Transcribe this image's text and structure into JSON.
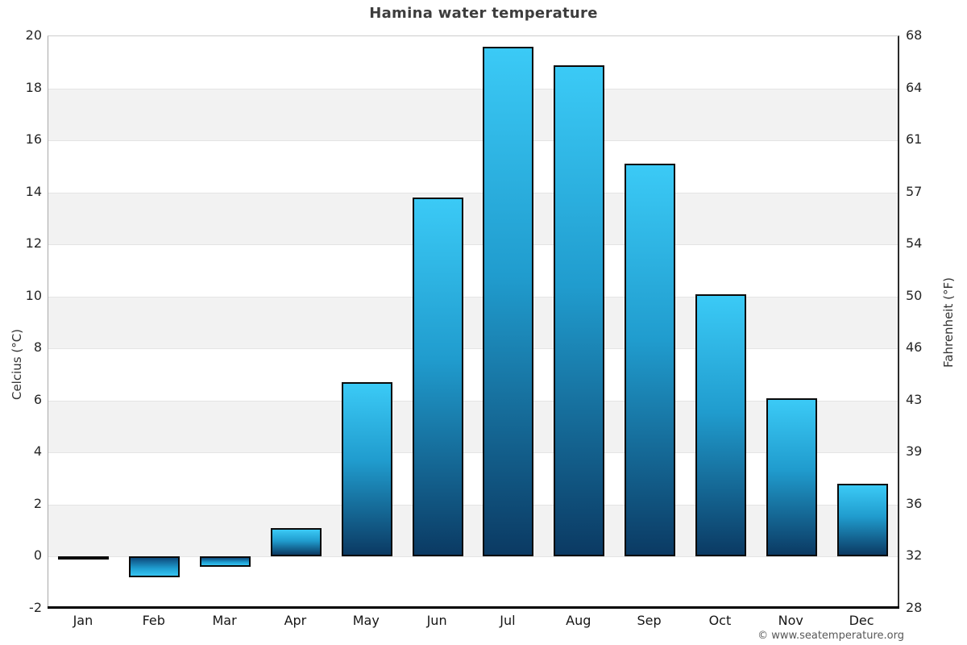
{
  "title": "Hamina water temperature",
  "attribution": "© www.seatemperature.org",
  "chart_data": {
    "type": "bar",
    "title": "Hamina water temperature",
    "categories": [
      "Jan",
      "Feb",
      "Mar",
      "Apr",
      "May",
      "Jun",
      "Jul",
      "Aug",
      "Sep",
      "Oct",
      "Nov",
      "Dec"
    ],
    "values": [
      -0.1,
      -0.8,
      -0.4,
      1.1,
      6.7,
      13.8,
      19.6,
      18.9,
      15.1,
      10.1,
      6.1,
      2.8
    ],
    "unit": "°C",
    "ylabel_left": "Celcius (°C)",
    "ylabel_right": "Fahrenheit (°F)",
    "xlabel": "",
    "ylim_celsius": [
      -2,
      20
    ],
    "yticks_celsius": [
      20,
      18,
      16,
      14,
      12,
      10,
      8,
      6,
      4,
      2,
      0,
      -2
    ],
    "yticks_fahrenheit": [
      68,
      64,
      61,
      57,
      54,
      50,
      46,
      43,
      39,
      36,
      32,
      28
    ],
    "legend": "none",
    "grid": "horizontal alternating bands",
    "band_color": "#f2f2f2",
    "band_alt_color": "#ffffff",
    "bar_gradient_top": "#3bcaf6",
    "bar_gradient_bottom": "#0b3a63",
    "bar_border_color": "#000000",
    "axis_line_color": "#000000",
    "title_color": "#3d3d3d"
  }
}
